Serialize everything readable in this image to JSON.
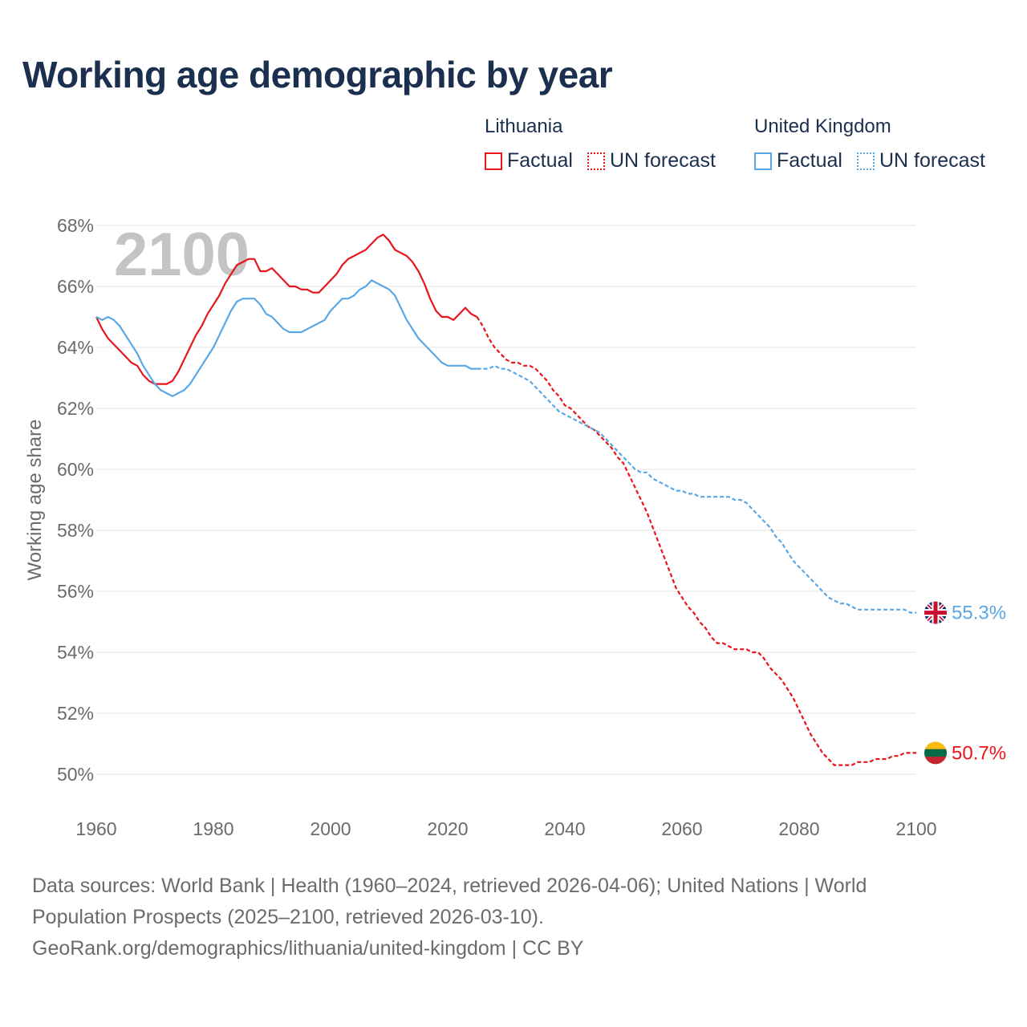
{
  "title": "Working age demographic by year",
  "legend": {
    "groups": [
      {
        "country": "Lithuania",
        "factual_label": "Factual",
        "forecast_label": "UN forecast",
        "color": "#e8151b"
      },
      {
        "country": "United Kingdom",
        "factual_label": "Factual",
        "forecast_label": "UN forecast",
        "color": "#5aa7e6"
      }
    ]
  },
  "sources": {
    "line1": "Data sources: World Bank | Health (1960–2024, retrieved 2026-04-06); United Nations | World",
    "line2": "Population Prospects (2025–2100, retrieved 2026-03-10).",
    "line3": "GeoRank.org/demographics/lithuania/united-kingdom | CC BY"
  },
  "chart_data": {
    "type": "line",
    "title": "Working age demographic by year",
    "year_watermark": "2100",
    "xlabel": "",
    "ylabel": "Working age share",
    "xlim": [
      1960,
      2100
    ],
    "ylim": [
      49,
      69
    ],
    "x_ticks": [
      1960,
      1980,
      2000,
      2020,
      2040,
      2060,
      2080,
      2100
    ],
    "y_ticks": [
      50,
      52,
      54,
      56,
      58,
      60,
      62,
      64,
      66,
      68
    ],
    "y_tick_suffix": "%",
    "grid": true,
    "series": [
      {
        "name": "Lithuania",
        "color": "#e8151b",
        "end_label": "50.7%",
        "factual": [
          [
            1960,
            65.0
          ],
          [
            1961,
            64.6
          ],
          [
            1962,
            64.3
          ],
          [
            1963,
            64.1
          ],
          [
            1964,
            63.9
          ],
          [
            1965,
            63.7
          ],
          [
            1966,
            63.5
          ],
          [
            1967,
            63.4
          ],
          [
            1968,
            63.1
          ],
          [
            1969,
            62.9
          ],
          [
            1970,
            62.8
          ],
          [
            1971,
            62.8
          ],
          [
            1972,
            62.8
          ],
          [
            1973,
            62.9
          ],
          [
            1974,
            63.2
          ],
          [
            1975,
            63.6
          ],
          [
            1976,
            64.0
          ],
          [
            1977,
            64.4
          ],
          [
            1978,
            64.7
          ],
          [
            1979,
            65.1
          ],
          [
            1980,
            65.4
          ],
          [
            1981,
            65.7
          ],
          [
            1982,
            66.1
          ],
          [
            1983,
            66.4
          ],
          [
            1984,
            66.7
          ],
          [
            1985,
            66.8
          ],
          [
            1986,
            66.9
          ],
          [
            1987,
            66.9
          ],
          [
            1988,
            66.5
          ],
          [
            1989,
            66.5
          ],
          [
            1990,
            66.6
          ],
          [
            1991,
            66.4
          ],
          [
            1992,
            66.2
          ],
          [
            1993,
            66.0
          ],
          [
            1994,
            66.0
          ],
          [
            1995,
            65.9
          ],
          [
            1996,
            65.9
          ],
          [
            1997,
            65.8
          ],
          [
            1998,
            65.8
          ],
          [
            1999,
            66.0
          ],
          [
            2000,
            66.2
          ],
          [
            2001,
            66.4
          ],
          [
            2002,
            66.7
          ],
          [
            2003,
            66.9
          ],
          [
            2004,
            67.0
          ],
          [
            2005,
            67.1
          ],
          [
            2006,
            67.2
          ],
          [
            2007,
            67.4
          ],
          [
            2008,
            67.6
          ],
          [
            2009,
            67.7
          ],
          [
            2010,
            67.5
          ],
          [
            2011,
            67.2
          ],
          [
            2012,
            67.1
          ],
          [
            2013,
            67.0
          ],
          [
            2014,
            66.8
          ],
          [
            2015,
            66.5
          ],
          [
            2016,
            66.1
          ],
          [
            2017,
            65.6
          ],
          [
            2018,
            65.2
          ],
          [
            2019,
            65.0
          ],
          [
            2020,
            65.0
          ],
          [
            2021,
            64.9
          ],
          [
            2022,
            65.1
          ],
          [
            2023,
            65.3
          ],
          [
            2024,
            65.1
          ],
          [
            2025,
            65.0
          ]
        ],
        "forecast": [
          [
            2025,
            65.0
          ],
          [
            2026,
            64.7
          ],
          [
            2027,
            64.3
          ],
          [
            2028,
            64.0
          ],
          [
            2029,
            63.8
          ],
          [
            2030,
            63.6
          ],
          [
            2031,
            63.5
          ],
          [
            2032,
            63.5
          ],
          [
            2033,
            63.4
          ],
          [
            2034,
            63.4
          ],
          [
            2035,
            63.3
          ],
          [
            2036,
            63.1
          ],
          [
            2037,
            62.9
          ],
          [
            2038,
            62.6
          ],
          [
            2039,
            62.4
          ],
          [
            2040,
            62.1
          ],
          [
            2041,
            62.0
          ],
          [
            2042,
            61.8
          ],
          [
            2043,
            61.6
          ],
          [
            2044,
            61.4
          ],
          [
            2045,
            61.3
          ],
          [
            2046,
            61.1
          ],
          [
            2047,
            60.9
          ],
          [
            2048,
            60.7
          ],
          [
            2049,
            60.4
          ],
          [
            2050,
            60.2
          ],
          [
            2051,
            59.8
          ],
          [
            2052,
            59.4
          ],
          [
            2053,
            59.0
          ],
          [
            2054,
            58.6
          ],
          [
            2055,
            58.1
          ],
          [
            2056,
            57.6
          ],
          [
            2057,
            57.1
          ],
          [
            2058,
            56.6
          ],
          [
            2059,
            56.1
          ],
          [
            2060,
            55.8
          ],
          [
            2061,
            55.5
          ],
          [
            2062,
            55.3
          ],
          [
            2063,
            55.0
          ],
          [
            2064,
            54.8
          ],
          [
            2065,
            54.5
          ],
          [
            2066,
            54.3
          ],
          [
            2067,
            54.3
          ],
          [
            2068,
            54.2
          ],
          [
            2069,
            54.1
          ],
          [
            2070,
            54.1
          ],
          [
            2071,
            54.1
          ],
          [
            2072,
            54.0
          ],
          [
            2073,
            54.0
          ],
          [
            2074,
            53.8
          ],
          [
            2075,
            53.5
          ],
          [
            2076,
            53.3
          ],
          [
            2077,
            53.1
          ],
          [
            2078,
            52.8
          ],
          [
            2079,
            52.5
          ],
          [
            2080,
            52.1
          ],
          [
            2081,
            51.7
          ],
          [
            2082,
            51.3
          ],
          [
            2083,
            51.0
          ],
          [
            2084,
            50.7
          ],
          [
            2085,
            50.5
          ],
          [
            2086,
            50.3
          ],
          [
            2087,
            50.3
          ],
          [
            2088,
            50.3
          ],
          [
            2089,
            50.3
          ],
          [
            2090,
            50.4
          ],
          [
            2091,
            50.4
          ],
          [
            2092,
            50.4
          ],
          [
            2093,
            50.5
          ],
          [
            2094,
            50.5
          ],
          [
            2095,
            50.5
          ],
          [
            2096,
            50.6
          ],
          [
            2097,
            50.6
          ],
          [
            2098,
            50.7
          ],
          [
            2099,
            50.7
          ],
          [
            2100,
            50.7
          ]
        ]
      },
      {
        "name": "United Kingdom",
        "color": "#5aa7e6",
        "end_label": "55.3%",
        "factual": [
          [
            1960,
            65.0
          ],
          [
            1961,
            64.9
          ],
          [
            1962,
            65.0
          ],
          [
            1963,
            64.9
          ],
          [
            1964,
            64.7
          ],
          [
            1965,
            64.4
          ],
          [
            1966,
            64.1
          ],
          [
            1967,
            63.8
          ],
          [
            1968,
            63.4
          ],
          [
            1969,
            63.1
          ],
          [
            1970,
            62.8
          ],
          [
            1971,
            62.6
          ],
          [
            1972,
            62.5
          ],
          [
            1973,
            62.4
          ],
          [
            1974,
            62.5
          ],
          [
            1975,
            62.6
          ],
          [
            1976,
            62.8
          ],
          [
            1977,
            63.1
          ],
          [
            1978,
            63.4
          ],
          [
            1979,
            63.7
          ],
          [
            1980,
            64.0
          ],
          [
            1981,
            64.4
          ],
          [
            1982,
            64.8
          ],
          [
            1983,
            65.2
          ],
          [
            1984,
            65.5
          ],
          [
            1985,
            65.6
          ],
          [
            1986,
            65.6
          ],
          [
            1987,
            65.6
          ],
          [
            1988,
            65.4
          ],
          [
            1989,
            65.1
          ],
          [
            1990,
            65.0
          ],
          [
            1991,
            64.8
          ],
          [
            1992,
            64.6
          ],
          [
            1993,
            64.5
          ],
          [
            1994,
            64.5
          ],
          [
            1995,
            64.5
          ],
          [
            1996,
            64.6
          ],
          [
            1997,
            64.7
          ],
          [
            1998,
            64.8
          ],
          [
            1999,
            64.9
          ],
          [
            2000,
            65.2
          ],
          [
            2001,
            65.4
          ],
          [
            2002,
            65.6
          ],
          [
            2003,
            65.6
          ],
          [
            2004,
            65.7
          ],
          [
            2005,
            65.9
          ],
          [
            2006,
            66.0
          ],
          [
            2007,
            66.2
          ],
          [
            2008,
            66.1
          ],
          [
            2009,
            66.0
          ],
          [
            2010,
            65.9
          ],
          [
            2011,
            65.7
          ],
          [
            2012,
            65.3
          ],
          [
            2013,
            64.9
          ],
          [
            2014,
            64.6
          ],
          [
            2015,
            64.3
          ],
          [
            2016,
            64.1
          ],
          [
            2017,
            63.9
          ],
          [
            2018,
            63.7
          ],
          [
            2019,
            63.5
          ],
          [
            2020,
            63.4
          ],
          [
            2021,
            63.4
          ],
          [
            2022,
            63.4
          ],
          [
            2023,
            63.4
          ],
          [
            2024,
            63.3
          ],
          [
            2025,
            63.3
          ]
        ],
        "forecast": [
          [
            2025,
            63.3
          ],
          [
            2026,
            63.3
          ],
          [
            2027,
            63.3
          ],
          [
            2028,
            63.4
          ],
          [
            2029,
            63.3
          ],
          [
            2030,
            63.3
          ],
          [
            2031,
            63.2
          ],
          [
            2032,
            63.1
          ],
          [
            2033,
            63.0
          ],
          [
            2034,
            62.9
          ],
          [
            2035,
            62.7
          ],
          [
            2036,
            62.5
          ],
          [
            2037,
            62.3
          ],
          [
            2038,
            62.1
          ],
          [
            2039,
            61.9
          ],
          [
            2040,
            61.8
          ],
          [
            2041,
            61.7
          ],
          [
            2042,
            61.6
          ],
          [
            2043,
            61.5
          ],
          [
            2044,
            61.4
          ],
          [
            2045,
            61.3
          ],
          [
            2046,
            61.2
          ],
          [
            2047,
            61.0
          ],
          [
            2048,
            60.8
          ],
          [
            2049,
            60.6
          ],
          [
            2050,
            60.4
          ],
          [
            2051,
            60.2
          ],
          [
            2052,
            60.0
          ],
          [
            2053,
            59.9
          ],
          [
            2054,
            59.9
          ],
          [
            2055,
            59.7
          ],
          [
            2056,
            59.6
          ],
          [
            2057,
            59.5
          ],
          [
            2058,
            59.4
          ],
          [
            2059,
            59.3
          ],
          [
            2060,
            59.3
          ],
          [
            2061,
            59.2
          ],
          [
            2062,
            59.2
          ],
          [
            2063,
            59.1
          ],
          [
            2064,
            59.1
          ],
          [
            2065,
            59.1
          ],
          [
            2066,
            59.1
          ],
          [
            2067,
            59.1
          ],
          [
            2068,
            59.1
          ],
          [
            2069,
            59.0
          ],
          [
            2070,
            59.0
          ],
          [
            2071,
            58.9
          ],
          [
            2072,
            58.7
          ],
          [
            2073,
            58.5
          ],
          [
            2074,
            58.3
          ],
          [
            2075,
            58.1
          ],
          [
            2076,
            57.8
          ],
          [
            2077,
            57.6
          ],
          [
            2078,
            57.3
          ],
          [
            2079,
            57.0
          ],
          [
            2080,
            56.8
          ],
          [
            2081,
            56.6
          ],
          [
            2082,
            56.4
          ],
          [
            2083,
            56.2
          ],
          [
            2084,
            56.0
          ],
          [
            2085,
            55.8
          ],
          [
            2086,
            55.7
          ],
          [
            2087,
            55.6
          ],
          [
            2088,
            55.6
          ],
          [
            2089,
            55.5
          ],
          [
            2090,
            55.4
          ],
          [
            2091,
            55.4
          ],
          [
            2092,
            55.4
          ],
          [
            2093,
            55.4
          ],
          [
            2094,
            55.4
          ],
          [
            2095,
            55.4
          ],
          [
            2096,
            55.4
          ],
          [
            2097,
            55.4
          ],
          [
            2098,
            55.4
          ],
          [
            2099,
            55.3
          ],
          [
            2100,
            55.3
          ]
        ]
      }
    ]
  }
}
